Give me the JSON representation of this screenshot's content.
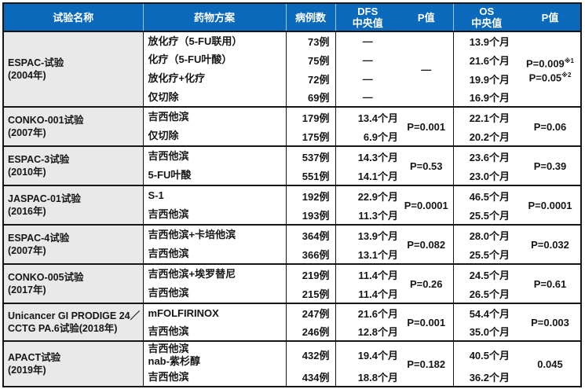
{
  "colors": {
    "header_bg": "#0b69bb",
    "header_text": "#ffffff",
    "trial_column_bg": "#e9e9e9",
    "border": "#161616",
    "body_bg": "#ffffff"
  },
  "header": {
    "trial": "试验名称",
    "regimen": "药物方案",
    "cases": "病例数",
    "dfs_line1": "DFS",
    "dfs_line2": "中央值",
    "dfs_p": "P值",
    "os_line1": "OS",
    "os_line2": "中央值",
    "os_p": "P值"
  },
  "trials": [
    {
      "name_line1": "ESPAC-试验",
      "name_line2": "(2004年)",
      "arms": [
        {
          "regimen": "放化疗（5-FU联用）",
          "cases": "73例",
          "dfs": "—",
          "os": "13.9个月"
        },
        {
          "regimen": "化疗（5-FU叶酸）",
          "cases": "75例",
          "dfs": "—",
          "os": "21.6个月"
        },
        {
          "regimen": "放化疗+化疗",
          "cases": "72例",
          "dfs": "—",
          "os": "19.9个月"
        },
        {
          "regimen": "仅切除",
          "cases": "69例",
          "dfs": "—",
          "os": "16.9个月"
        }
      ],
      "dfs_p": "—",
      "os_p_line1": "P=0.009",
      "os_p_sup1": "※1",
      "os_p_line2": "P=0.05",
      "os_p_sup2": "※2"
    },
    {
      "name_line1": "CONKO-001试验",
      "name_line2": "(2007年)",
      "arms": [
        {
          "regimen": "吉西他滨",
          "cases": "179例",
          "dfs": "13.4个月",
          "os": "22.1个月"
        },
        {
          "regimen": "仅切除",
          "cases": "175例",
          "dfs": "6.9个月",
          "os": "20.2个月"
        }
      ],
      "dfs_p": "P=0.001",
      "os_p": "P=0.06"
    },
    {
      "name_line1": "ESPAC-3试验",
      "name_line2": "(2010年)",
      "arms": [
        {
          "regimen": "吉西他滨",
          "cases": "537例",
          "dfs": "14.3个月",
          "os": "23.6个月"
        },
        {
          "regimen": "5-FU叶酸",
          "cases": "551例",
          "dfs": "14.1个月",
          "os": "23.0个月"
        }
      ],
      "dfs_p": "P=0.53",
      "os_p": "P=0.39"
    },
    {
      "name_line1": "JASPAC-01试验",
      "name_line2": "(2016年)",
      "arms": [
        {
          "regimen": "S-1",
          "cases": "192例",
          "dfs": "22.9个月",
          "os": "46.5个月"
        },
        {
          "regimen": "吉西他滨",
          "cases": "193例",
          "dfs": "11.3个月",
          "os": "25.5个月"
        }
      ],
      "dfs_p": "P=0.0001",
      "os_p": "P=0.0001"
    },
    {
      "name_line1": "ESPAC-4试验",
      "name_line2": "(2007年)",
      "arms": [
        {
          "regimen": "吉西他滨+卡培他滨",
          "cases": "364例",
          "dfs": "13.9个月",
          "os": "28.0个月"
        },
        {
          "regimen": "吉西他滨",
          "cases": "366例",
          "dfs": "13.1个月",
          "os": "25.5个月"
        }
      ],
      "dfs_p": "P=0.082",
      "os_p": "P=0.032"
    },
    {
      "name_line1": "CONKO-005试验",
      "name_line2": "(2017年)",
      "arms": [
        {
          "regimen": "吉西他滨+埃罗替尼",
          "cases": "219例",
          "dfs": "11.4个月",
          "os": "24.5个月"
        },
        {
          "regimen": "吉西他滨",
          "cases": "215例",
          "dfs": "11.4个月",
          "os": "26.5个月"
        }
      ],
      "dfs_p": "P=0.26",
      "os_p": "P=0.61"
    },
    {
      "name_line1": "Unicancer GI PRODIGE 24／",
      "name_line2": "CCTG PA.6试验(2018年)",
      "arms": [
        {
          "regimen": "mFOLFIRINOX",
          "cases": "247例",
          "dfs": "21.6个月",
          "os": "54.4个月"
        },
        {
          "regimen": "吉西他滨",
          "cases": "246例",
          "dfs": "12.8个月",
          "os": "35.0个月"
        }
      ],
      "dfs_p": "P=0.001",
      "os_p": "P=0.003"
    },
    {
      "name_line1": "APACT试验",
      "name_line2": "(2019年)",
      "arms": [
        {
          "regimen_line1": "吉西他滨",
          "regimen_line2": "nab-紫杉醇",
          "cases": "432例",
          "dfs": "19.4个月",
          "os": "40.5个月"
        },
        {
          "regimen": "吉西他滨",
          "cases": "434例",
          "dfs": "18.8个月",
          "os": "36.2个月"
        }
      ],
      "dfs_p": "P=0.182",
      "os_p": "0.045"
    }
  ]
}
